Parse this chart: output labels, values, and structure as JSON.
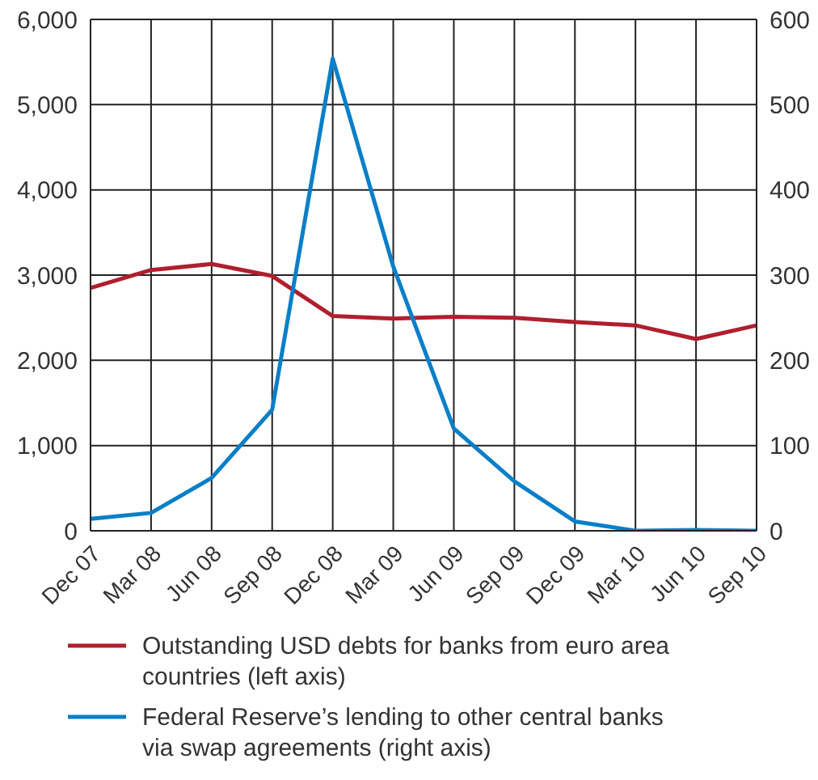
{
  "chart_data": {
    "type": "line",
    "categories": [
      "Dec 07",
      "Mar 08",
      "Jun 08",
      "Sep 08",
      "Dec 08",
      "Mar 09",
      "Jun 09",
      "Sep 09",
      "Dec 09",
      "Mar 10",
      "Jun 10",
      "Sep 10"
    ],
    "series": [
      {
        "name": "Outstanding USD debts for banks from euro area countries (left axis)",
        "color": "#b01f2e",
        "values": [
          2850,
          3060,
          3130,
          2990,
          2520,
          2490,
          2510,
          2500,
          2450,
          2410,
          2250,
          2410
        ]
      },
      {
        "name": "Federal Reserve’s lending to other central banks via swap agreements (right axis)",
        "color": "#0a7fc8",
        "axis": "y2",
        "values": [
          14,
          21,
          62,
          142,
          554,
          310,
          120,
          58,
          11,
          0,
          1,
          0
        ]
      }
    ],
    "ylim": [
      0,
      6000
    ],
    "yticks": [
      0,
      {
        "value": 1000,
        "label": "1,000"
      },
      {
        "value": 2000,
        "label": "2,000"
      },
      {
        "value": 3000,
        "label": "3,000"
      },
      {
        "value": 4000,
        "label": "4,000"
      },
      {
        "value": 5000,
        "label": "5,000"
      },
      {
        "value": 6000,
        "label": "6,000"
      }
    ],
    "y2lim": [
      0,
      600
    ],
    "y2ticks": [
      0,
      100,
      200,
      300,
      400,
      500,
      600
    ],
    "grid": true,
    "legend": "bottom",
    "marker": "none",
    "line_style": "solid"
  }
}
